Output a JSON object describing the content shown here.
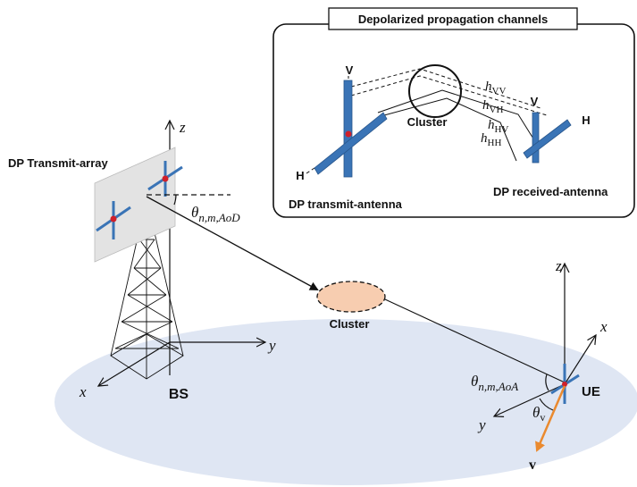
{
  "inset": {
    "title": "Depolarized propagation channels",
    "v_tx": "V",
    "h_tx": "H",
    "v_rx": "V",
    "h_rx": "H",
    "cluster": "Cluster",
    "h_vv": "h",
    "h_vv_sub": "VV",
    "h_vh": "h",
    "h_vh_sub": "VH",
    "h_hv": "h",
    "h_hv_sub": "HV",
    "h_hh": "h",
    "h_hh_sub": "HH",
    "tx_antenna": "DP transmit-antenna",
    "rx_antenna": "DP received-antenna"
  },
  "main": {
    "transmit_array": "DP Transmit-array",
    "bs": "BS",
    "ue": "UE",
    "cluster": "Cluster",
    "aod_theta": "θ",
    "aod_sub": "n,m,AoD",
    "aoa_theta": "θ",
    "aoa_sub": "n,m,AoA",
    "theta_v": "θ",
    "theta_v_sub": "v",
    "v_vector": "v",
    "bs_z": "z",
    "bs_x": "x",
    "bs_y": "y",
    "ue_z": "z",
    "ue_x": "x",
    "ue_y": "y"
  },
  "colors": {
    "ground": "#dfe6f3",
    "antenna": "#3a74b6",
    "feed": "#d0202a",
    "cluster": "#f7cdb0",
    "v_vector": "#ea8a2f",
    "panel": "#e3e3e3"
  }
}
